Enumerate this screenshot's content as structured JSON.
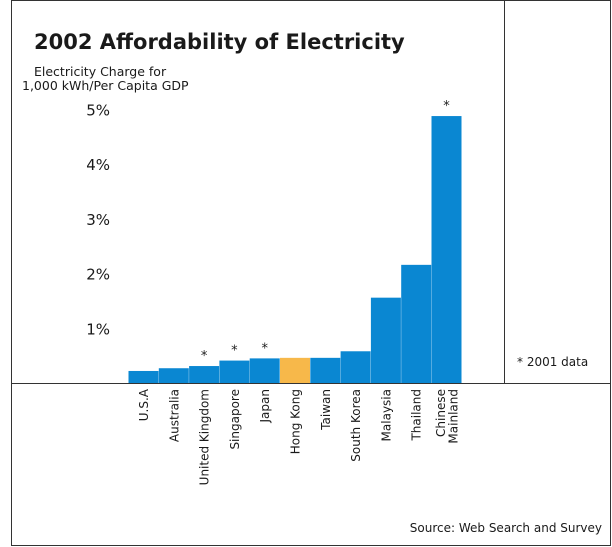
{
  "chart_data": {
    "type": "bar",
    "title": "2002 Affordability of Electricity",
    "ylabel_lines": [
      "Electricity Charge for",
      "1,000 kWh/Per Capita GDP"
    ],
    "y_ticks": [
      "1%",
      "2%",
      "3%",
      "4%",
      "5%"
    ],
    "ylim": [
      0,
      5.2
    ],
    "categories": [
      {
        "label": "U.S.A",
        "value": 0.22,
        "highlight": false,
        "star": false
      },
      {
        "label": "Australia",
        "value": 0.27,
        "highlight": false,
        "star": false
      },
      {
        "label": "United Kingdom",
        "value": 0.31,
        "highlight": false,
        "star": true
      },
      {
        "label": "Singapore",
        "value": 0.41,
        "highlight": false,
        "star": true
      },
      {
        "label": "Japan",
        "value": 0.45,
        "highlight": false,
        "star": true
      },
      {
        "label": "Hong Kong",
        "value": 0.46,
        "highlight": true,
        "star": false
      },
      {
        "label": "Taiwan",
        "value": 0.46,
        "highlight": false,
        "star": false
      },
      {
        "label": "South Korea",
        "value": 0.58,
        "highlight": false,
        "star": false
      },
      {
        "label": "Malaysia",
        "value": 1.56,
        "highlight": false,
        "star": false
      },
      {
        "label": "Thailand",
        "value": 2.16,
        "highlight": false,
        "star": false
      },
      {
        "label": "Chinese\nMainland",
        "value": 4.88,
        "highlight": false,
        "star": true
      }
    ],
    "star_mark": "*",
    "note": "* 2001 data",
    "source": "Source: Web Search and Survey",
    "colors": {
      "bar": "#0a87d2",
      "highlight": "#f7b84a",
      "frame": "#333333",
      "text": "#1a1a1a"
    },
    "grid": false,
    "legend": "none"
  }
}
